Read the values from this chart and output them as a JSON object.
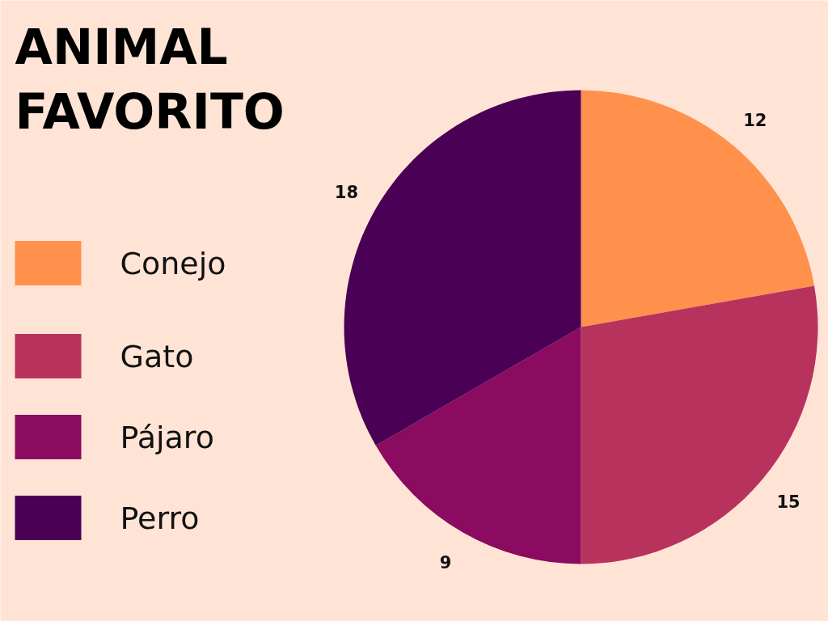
{
  "chart_data": {
    "type": "pie",
    "title": "ANIMAL FAVORITO",
    "categories": [
      "Conejo",
      "Gato",
      "Pájaro",
      "Perro"
    ],
    "values": [
      12,
      15,
      9,
      18
    ],
    "colors": [
      "#ff914d",
      "#b8325e",
      "#8a0b5f",
      "#4a0055"
    ],
    "data_labels": true,
    "legend": "left"
  }
}
